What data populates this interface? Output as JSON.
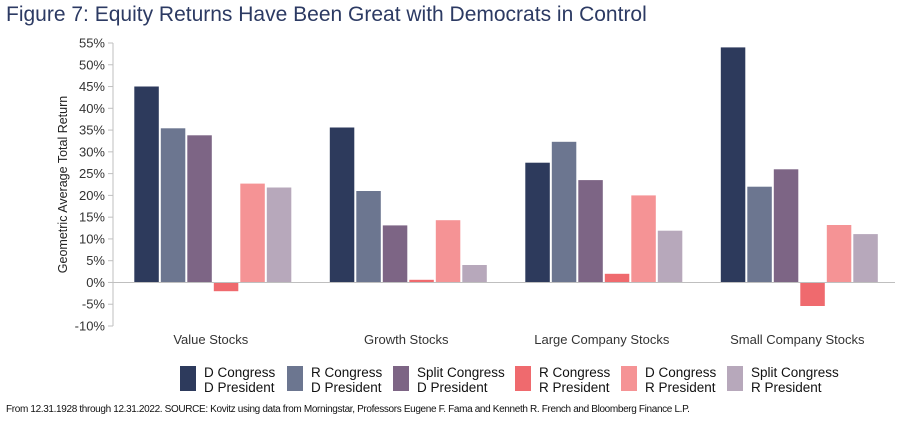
{
  "chart_data": {
    "type": "bar",
    "title": "Figure 7: Equity Returns Have Been Great with Democrats in Control",
    "ylabel": "Geometric Average Total Return",
    "xlabel": "",
    "ylim": [
      -10,
      55
    ],
    "yticks": [
      -10,
      -5,
      0,
      5,
      10,
      15,
      20,
      25,
      30,
      35,
      40,
      45,
      50,
      55
    ],
    "ytick_labels": [
      "-10%",
      "-5%",
      "0%",
      "5%",
      "10%",
      "15%",
      "20%",
      "25%",
      "30%",
      "35%",
      "40%",
      "45%",
      "50%",
      "55%"
    ],
    "categories": [
      "Value Stocks",
      "Growth Stocks",
      "Large Company Stocks",
      "Small Company Stocks"
    ],
    "series": [
      {
        "name": "D Congress D President",
        "line1": "D Congress",
        "line2": "D President",
        "color": "#2d3a5c",
        "values": [
          45.0,
          35.6,
          27.5,
          54.0
        ]
      },
      {
        "name": "R Congress D President",
        "line1": "R Congress",
        "line2": "D President",
        "color": "#6c7690",
        "values": [
          35.4,
          21.0,
          32.3,
          22.0
        ]
      },
      {
        "name": "Split Congress D President",
        "line1": "Split Congress",
        "line2": "D President",
        "color": "#7d6585",
        "values": [
          33.8,
          13.1,
          23.5,
          26.0
        ]
      },
      {
        "name": "R Congress R President",
        "line1": "R Congress",
        "line2": "R President",
        "color": "#ef6a6e",
        "values": [
          -2.0,
          0.6,
          2.0,
          -5.4
        ]
      },
      {
        "name": "D Congress R President",
        "line1": "D Congress",
        "line2": "R President",
        "color": "#f59395",
        "values": [
          22.7,
          14.3,
          20.0,
          13.2
        ]
      },
      {
        "name": "Split Congress R President",
        "line1": "Split Congress",
        "line2": "R President",
        "color": "#b7a8bb",
        "values": [
          21.8,
          4.0,
          11.9,
          11.1
        ]
      }
    ],
    "grid": false,
    "legend_position": "bottom"
  },
  "source_note": "From 12.31.1928 through 12.31.2022. SOURCE: Kovitz using data from Morningstar, Professors Eugene F. Fama and Kenneth R. French and Bloomberg Finance L.P."
}
